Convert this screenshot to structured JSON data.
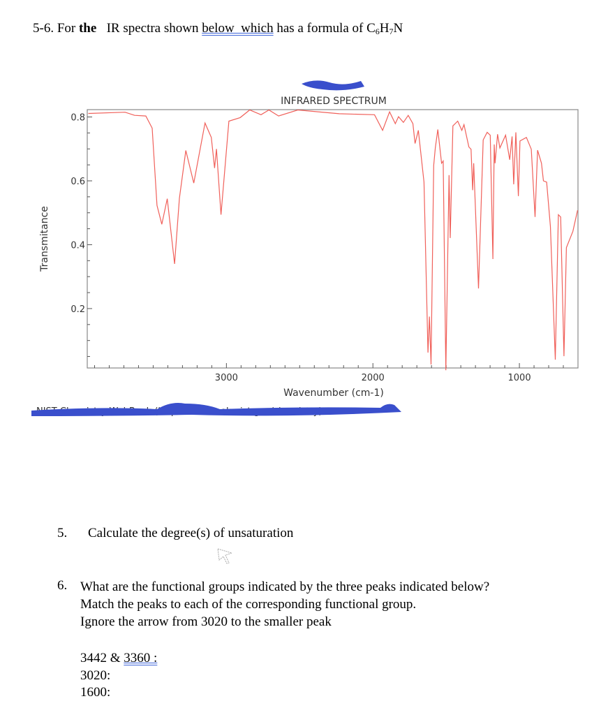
{
  "header": {
    "prefix": "5-6.  For ",
    "bold": "the",
    "middle": "   IR spectra shown ",
    "underlined": "below  which",
    "suffix": " has a formula of C",
    "sub1": "6",
    "h": "H",
    "sub2": "7",
    "n": "N"
  },
  "chart_data": {
    "type": "line",
    "title": "INFRARED SPECTRUM",
    "xlabel": "Wavenumber (cm-1)",
    "ylabel": "Transmitance",
    "xlim": [
      3950,
      600
    ],
    "ylim": [
      0.014,
      0.823
    ],
    "x_reversed": true,
    "xticks": [
      3000,
      2000,
      1000
    ],
    "yticks": [
      0.8,
      0.6,
      0.4,
      0.2
    ],
    "xtick_labels": [
      "3000",
      "2000",
      "1000"
    ],
    "ytick_labels": [
      "0.8",
      "0.6",
      "0.4",
      "0.2"
    ],
    "grid": false,
    "line_color": "#f0605a",
    "series": [
      {
        "x": [
          3943,
          3692,
          3627,
          3550,
          3507,
          3474,
          3441,
          3404,
          3354,
          3321,
          3277,
          3223,
          3146,
          3103,
          3081,
          3068,
          3037,
          2983,
          2906,
          2841,
          2764,
          2710,
          2644,
          2513,
          2230,
          1989,
          1934,
          1886,
          1847,
          1825,
          1792,
          1759,
          1727,
          1712,
          1690,
          1651,
          1624,
          1614,
          1603,
          1585,
          1574,
          1557,
          1531,
          1520,
          1502,
          1480,
          1472,
          1454,
          1421,
          1393,
          1378,
          1345,
          1330,
          1319,
          1312,
          1279,
          1247,
          1220,
          1199,
          1181,
          1172,
          1166,
          1149,
          1133,
          1094,
          1066,
          1050,
          1039,
          1024,
          1007,
          996,
          952,
          919,
          893,
          876,
          849,
          836,
          814,
          788,
          755,
          734,
          718,
          696,
          679,
          635,
          603
        ],
        "y": [
          0.811,
          0.815,
          0.805,
          0.803,
          0.765,
          0.523,
          0.464,
          0.544,
          0.34,
          0.545,
          0.695,
          0.593,
          0.781,
          0.736,
          0.64,
          0.7,
          0.494,
          0.787,
          0.798,
          0.822,
          0.807,
          0.822,
          0.803,
          0.822,
          0.81,
          0.807,
          0.758,
          0.816,
          0.779,
          0.801,
          0.783,
          0.805,
          0.779,
          0.717,
          0.758,
          0.596,
          0.062,
          0.175,
          0.025,
          0.648,
          0.703,
          0.761,
          0.655,
          0.662,
          0.007,
          0.618,
          0.421,
          0.772,
          0.787,
          0.758,
          0.776,
          0.706,
          0.699,
          0.571,
          0.655,
          0.263,
          0.728,
          0.752,
          0.743,
          0.355,
          0.714,
          0.655,
          0.746,
          0.703,
          0.743,
          0.666,
          0.739,
          0.589,
          0.752,
          0.552,
          0.725,
          0.736,
          0.699,
          0.487,
          0.696,
          0.655,
          0.6,
          0.596,
          0.457,
          0.04,
          0.494,
          0.487,
          0.051,
          0.391,
          0.442,
          0.508
        ]
      }
    ]
  },
  "source_credit": "NIST Chemistry WebBook (https://webbook.nist.gov/chemistry)",
  "redaction_color": "#3a4fcc",
  "q5": {
    "number": "5.",
    "text": "Calculate the degree(s) of unsaturation"
  },
  "q6": {
    "number": "6.",
    "line1": "What are the functional groups indicated by the three peaks indicated below?",
    "line2": "Match the peaks to each of the corresponding functional group.",
    "line3": "Ignore the arrow from 3020 to the smaller peak"
  },
  "answers": [
    {
      "label": "3442 & ",
      "label_ul": "3360 :"
    },
    {
      "label": "3020:"
    },
    {
      "label": "1600:"
    }
  ]
}
